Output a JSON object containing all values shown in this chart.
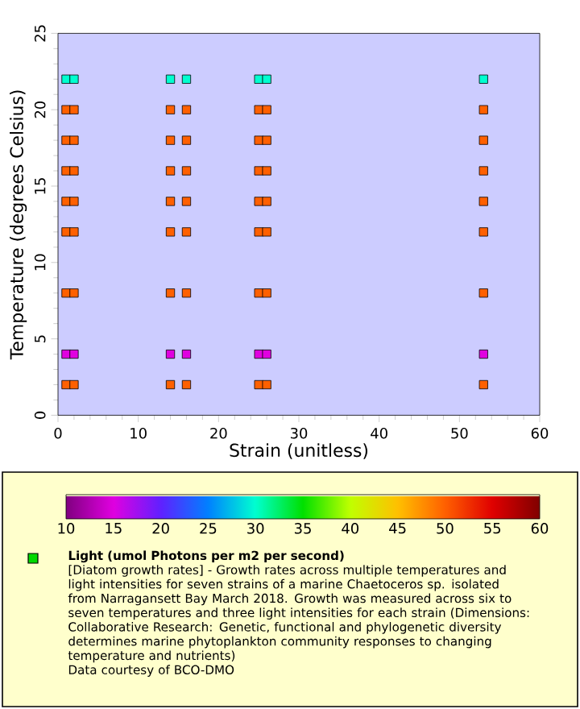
{
  "chart_data": {
    "type": "scatter",
    "xlabel": "Strain (unitless)",
    "ylabel": "Temperature (degrees Celsius)",
    "clabel": "Light (umol Photons per m2 per second)",
    "annotations": [
      "[Diatom growth rates] - Growth rates across multiple temperatures and light intensities for seven strains of a marine Chaetoceros sp. isolated from Narragansett Bay March 2018. Growth was measured across six to seven temperatures and three light intensities for each strain (Dimensions: Collaborative Research: Genetic, functional and phylogenetic diversity determines marine phytoplankton community responses to changing temperature and nutrients)",
      "Data courtesy of BCO-DMO"
    ],
    "x": [
      1,
      1,
      1,
      1,
      1,
      1,
      1,
      1,
      1,
      2,
      2,
      2,
      2,
      2,
      2,
      2,
      2,
      2,
      14,
      14,
      14,
      14,
      14,
      14,
      14,
      14,
      14,
      16,
      16,
      16,
      16,
      16,
      16,
      16,
      16,
      16,
      25,
      25,
      25,
      25,
      25,
      25,
      25,
      25,
      25,
      26,
      26,
      26,
      26,
      26,
      26,
      26,
      26,
      26,
      53,
      53,
      53,
      53,
      53,
      53,
      53,
      53,
      53
    ],
    "values": [
      2,
      4,
      8,
      12,
      14,
      16,
      18,
      20,
      22,
      2,
      4,
      8,
      12,
      14,
      16,
      18,
      20,
      22,
      2,
      4,
      8,
      12,
      14,
      16,
      18,
      20,
      22,
      2,
      4,
      8,
      12,
      14,
      16,
      18,
      20,
      22,
      2,
      4,
      8,
      12,
      14,
      16,
      18,
      20,
      22,
      2,
      4,
      8,
      12,
      14,
      16,
      18,
      20,
      22,
      2,
      4,
      8,
      12,
      14,
      16,
      18,
      20,
      22
    ],
    "cvalues": [
      50,
      15,
      50,
      50,
      50,
      50,
      50,
      50,
      30,
      50,
      15,
      50,
      50,
      50,
      50,
      50,
      50,
      30,
      50,
      15,
      50,
      50,
      50,
      50,
      50,
      50,
      30,
      50,
      15,
      50,
      50,
      50,
      50,
      50,
      50,
      30,
      50,
      15,
      50,
      50,
      50,
      50,
      50,
      50,
      30,
      50,
      15,
      50,
      50,
      50,
      50,
      50,
      50,
      30,
      50,
      15,
      50,
      50,
      50,
      50,
      50,
      50,
      30
    ],
    "clim": [
      10,
      60
    ],
    "cticks": [
      10,
      15,
      20,
      25,
      30,
      35,
      40,
      45,
      50,
      55,
      60
    ],
    "xlim": [
      0,
      60
    ],
    "xticks": [
      0,
      10,
      20,
      30,
      40,
      50,
      60
    ],
    "ylim": [
      0,
      25
    ],
    "yticks": [
      0,
      5,
      10,
      15,
      20,
      25
    ],
    "marker": "square"
  }
}
